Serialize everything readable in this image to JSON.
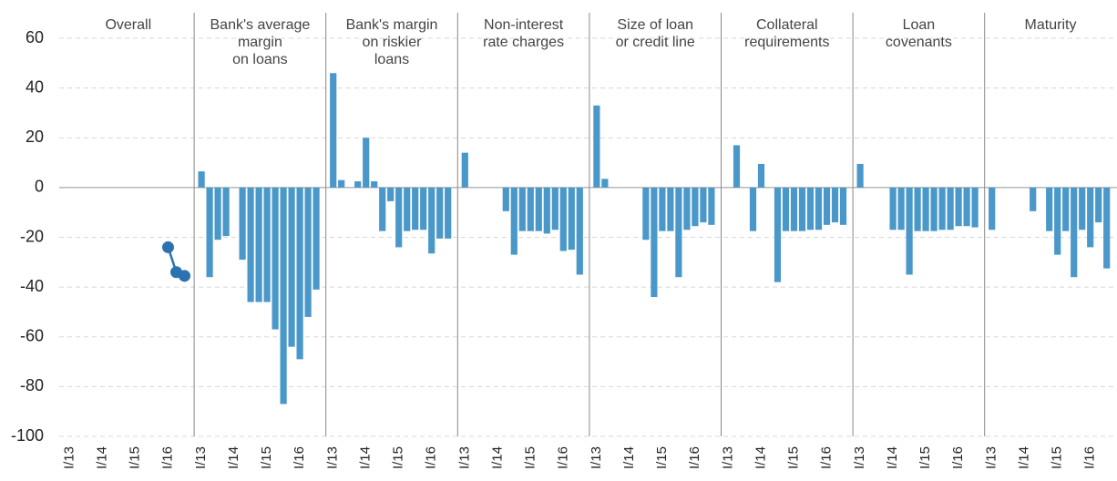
{
  "chart_data": [
    {
      "type": "line",
      "title": [
        "Overall"
      ],
      "color": "#2a72b0",
      "categories": [
        "I/13",
        null,
        null,
        null,
        "I/14",
        null,
        null,
        null,
        "I/15",
        null,
        null,
        null,
        "I/16",
        null,
        null
      ],
      "values": [
        null,
        null,
        null,
        null,
        null,
        null,
        null,
        null,
        null,
        null,
        null,
        null,
        -24,
        -34,
        -35.5
      ],
      "ylim": [
        -100,
        60
      ],
      "yticks": [
        -100,
        -80,
        -60,
        -40,
        -20,
        0,
        20,
        40,
        60
      ],
      "grid": true
    },
    {
      "type": "bar",
      "title": [
        "Bank's average",
        "margin",
        "on loans"
      ],
      "color": "#4a98c9",
      "categories": [
        "I/13",
        null,
        null,
        null,
        "I/14",
        null,
        null,
        null,
        "I/15",
        null,
        null,
        null,
        "I/16",
        null,
        null
      ],
      "values": [
        6.5,
        -36,
        -21,
        -19.5,
        0,
        -29,
        -46,
        -46,
        -46,
        -57,
        -87,
        -64,
        -69,
        -52,
        -41
      ]
    },
    {
      "type": "bar",
      "title": [
        "Bank's margin",
        "on riskier",
        "loans"
      ],
      "color": "#4a98c9",
      "categories": [
        "I/13",
        null,
        null,
        null,
        "I/14",
        null,
        null,
        null,
        "I/15",
        null,
        null,
        null,
        "I/16",
        null,
        null
      ],
      "values": [
        46,
        3,
        0,
        2.5,
        20,
        2.5,
        -17.5,
        -5.5,
        -24,
        -17.5,
        -17,
        -17,
        -26.5,
        -20.5,
        -20.5
      ]
    },
    {
      "type": "bar",
      "title": [
        "Non-interest",
        "rate charges"
      ],
      "color": "#4a98c9",
      "categories": [
        "I/13",
        null,
        null,
        null,
        "I/14",
        null,
        null,
        null,
        "I/15",
        null,
        null,
        null,
        "I/16",
        null,
        null
      ],
      "values": [
        14,
        0,
        0,
        0,
        0,
        -9.5,
        -27,
        -17.5,
        -17.5,
        -17.5,
        -18.5,
        -17,
        -25.5,
        -25,
        -35
      ]
    },
    {
      "type": "bar",
      "title": [
        "Size of loan",
        "or credit line"
      ],
      "color": "#4a98c9",
      "categories": [
        "I/13",
        null,
        null,
        null,
        "I/14",
        null,
        null,
        null,
        "I/15",
        null,
        null,
        null,
        "I/16",
        null,
        null
      ],
      "values": [
        33,
        3.5,
        0,
        0,
        0,
        0,
        -21,
        -44,
        -17.5,
        -17.5,
        -36,
        -17,
        -15.5,
        -14,
        -15
      ]
    },
    {
      "type": "bar",
      "title": [
        "Collateral",
        "requirements"
      ],
      "color": "#4a98c9",
      "categories": [
        "I/13",
        null,
        null,
        null,
        "I/14",
        null,
        null,
        null,
        "I/15",
        null,
        null,
        null,
        "I/16",
        null,
        null
      ],
      "values": [
        0,
        17,
        0,
        -17.5,
        9.5,
        0,
        -38,
        -17.5,
        -17.5,
        -17.5,
        -17,
        -17,
        -15,
        -14,
        -15
      ]
    },
    {
      "type": "bar",
      "title": [
        "Loan",
        "covenants"
      ],
      "color": "#4a98c9",
      "categories": [
        "I/13",
        null,
        null,
        null,
        "I/14",
        null,
        null,
        null,
        "I/15",
        null,
        null,
        null,
        "I/16",
        null,
        null
      ],
      "values": [
        9.5,
        0,
        0,
        0,
        -17,
        -17,
        -35,
        -17.5,
        -17.5,
        -17.5,
        -17,
        -17,
        -15.5,
        -15.5,
        -16
      ]
    },
    {
      "type": "bar",
      "title": [
        "Maturity"
      ],
      "color": "#4a98c9",
      "categories": [
        "I/13",
        null,
        null,
        null,
        "I/14",
        null,
        null,
        null,
        "I/15",
        null,
        null,
        null,
        "I/16",
        null,
        null
      ],
      "values": [
        -17,
        0,
        0,
        0,
        0,
        -9.5,
        0,
        -17.5,
        -27,
        -17.5,
        -36,
        -17,
        -24,
        -14,
        -32.5
      ]
    }
  ]
}
